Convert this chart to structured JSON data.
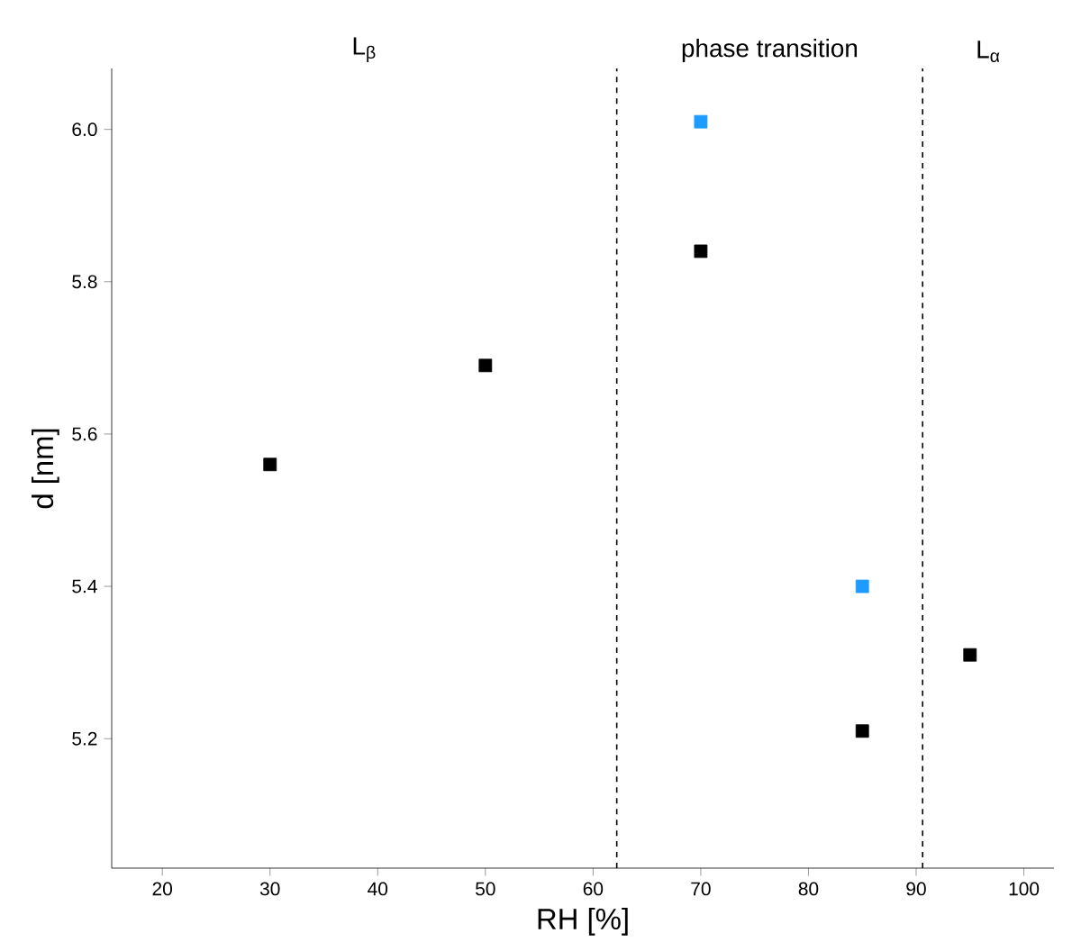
{
  "chart_data": {
    "type": "scatter",
    "xlabel": "RH [%]",
    "ylabel": "d [nm]",
    "x": [
      30,
      50,
      70,
      85,
      95
    ],
    "series": [
      {
        "color": "#000000",
        "values": [
          5.56,
          5.69,
          5.84,
          5.21,
          5.31
        ]
      },
      {
        "color": "#1e9bff",
        "values": [
          null,
          null,
          6.01,
          5.4,
          null
        ]
      }
    ],
    "marker": "square",
    "xlim": [
      15.3,
      102.8
    ],
    "ylim": [
      5.03,
      6.08
    ],
    "xticks": [
      20,
      30,
      40,
      50,
      60,
      70,
      80,
      90,
      100
    ],
    "yticks": [
      {
        "value": 5.2,
        "label": "5.2"
      },
      {
        "value": 5.4,
        "label": "5.4"
      },
      {
        "value": 5.6,
        "label": "5.6"
      },
      {
        "value": 5.8,
        "label": "5.8"
      },
      {
        "value": 6.0,
        "label": "6.0"
      }
    ],
    "ref_lines": [
      {
        "axis": "x",
        "value": 62.2,
        "line_style": "dashed",
        "color": "#000000"
      },
      {
        "axis": "x",
        "value": 90.6,
        "line_style": "dashed",
        "color": "#000000"
      }
    ],
    "annotations": [
      "L$_{β}$",
      "phase transition",
      "L$_{α}$"
    ]
  }
}
